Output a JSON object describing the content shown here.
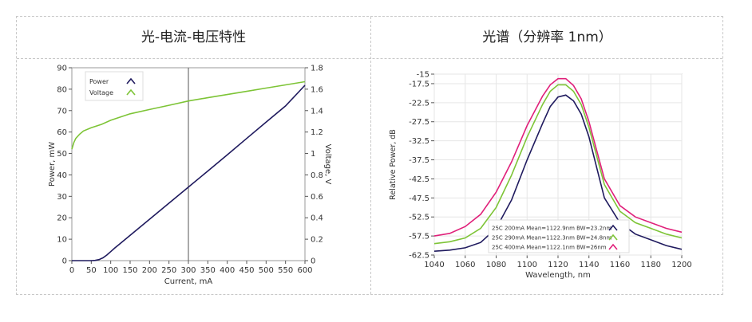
{
  "chart_data": [
    {
      "type": "line",
      "title": "光-电流-电压特性",
      "xlabel": "Current, mA",
      "ylabel": "Power, mW",
      "y2label": "Voltage, V",
      "xlim": [
        0,
        600
      ],
      "ylim": [
        0,
        90
      ],
      "y2lim": [
        0,
        1.8
      ],
      "xticks": [
        "0",
        "50",
        "100",
        "150",
        "200",
        "250",
        "300",
        "350",
        "400",
        "450",
        "500",
        "550",
        "600"
      ],
      "yticks": [
        "0",
        "10",
        "20",
        "30",
        "40",
        "50",
        "60",
        "70",
        "80",
        "90"
      ],
      "y2ticks": [
        "0",
        "0.2",
        "0.4",
        "0.6",
        "0.8",
        "1",
        "1.2",
        "1.4",
        "1.6",
        "1.8"
      ],
      "marker_x": 300,
      "legend": "top-left",
      "grid": false,
      "series": [
        {
          "name": "Power",
          "axis": "left",
          "color": "#1f1a5e",
          "x": [
            0,
            50,
            60,
            70,
            80,
            90,
            100,
            110,
            120,
            150,
            200,
            250,
            300,
            350,
            400,
            450,
            500,
            550,
            600
          ],
          "y": [
            0,
            0,
            0.1,
            0.5,
            1.3,
            2.6,
            4.2,
            5.8,
            7.3,
            11.8,
            19.3,
            26.8,
            34.3,
            41.8,
            49.4,
            57.0,
            64.6,
            72.2,
            81.8
          ]
        },
        {
          "name": "Voltage",
          "axis": "right",
          "color": "#7dc436",
          "x": [
            0,
            5,
            10,
            20,
            30,
            50,
            75,
            100,
            150,
            200,
            250,
            300,
            350,
            400,
            450,
            500,
            550,
            600
          ],
          "y": [
            1.04,
            1.1,
            1.14,
            1.18,
            1.21,
            1.24,
            1.27,
            1.31,
            1.37,
            1.41,
            1.45,
            1.49,
            1.52,
            1.55,
            1.58,
            1.61,
            1.64,
            1.67
          ]
        }
      ]
    },
    {
      "type": "line",
      "title": "光谱（分辨率 1nm）",
      "xlabel": "Wavelength, nm",
      "ylabel": "Relative Power, dB",
      "xlim": [
        1040,
        1200
      ],
      "ylim": [
        -62.5,
        -15
      ],
      "xticks": [
        "1040",
        "1060",
        "1080",
        "1100",
        "1120",
        "1140",
        "1160",
        "1180",
        "1200"
      ],
      "yticks": [
        "-15",
        "-17.5",
        "-22.5",
        "-27.5",
        "-32.5",
        "-37.5",
        "-42.5",
        "-47.5",
        "-52.5",
        "-57.5",
        "-62.5"
      ],
      "grid": true,
      "legend": "bottom-center",
      "series": [
        {
          "name": "25C 200mA Mean=1122.9nm BW=23.2nm",
          "color": "#1f1a5e",
          "x": [
            1040,
            1050,
            1060,
            1070,
            1080,
            1090,
            1100,
            1110,
            1115,
            1120,
            1125,
            1130,
            1135,
            1140,
            1145,
            1150,
            1160,
            1170,
            1180,
            1190,
            1200
          ],
          "y": [
            -61.5,
            -61.2,
            -60.6,
            -59.2,
            -55.5,
            -48.0,
            -37.5,
            -28.0,
            -23.5,
            -21.0,
            -20.5,
            -22.0,
            -25.5,
            -31.5,
            -39.5,
            -47.5,
            -54.0,
            -57.0,
            -58.5,
            -60.0,
            -61.0
          ]
        },
        {
          "name": "25C 290mA Mean=1122.3nm BW=24.8nm",
          "color": "#7dc436",
          "x": [
            1040,
            1050,
            1060,
            1070,
            1080,
            1090,
            1100,
            1110,
            1115,
            1120,
            1125,
            1130,
            1135,
            1140,
            1145,
            1150,
            1160,
            1170,
            1180,
            1190,
            1200
          ],
          "y": [
            -59.5,
            -59.0,
            -58.0,
            -55.5,
            -50.0,
            -41.5,
            -31.5,
            -23.0,
            -19.5,
            -17.8,
            -17.8,
            -19.5,
            -23.0,
            -29.0,
            -36.5,
            -44.0,
            -51.0,
            -54.0,
            -55.5,
            -57.0,
            -58.0
          ]
        },
        {
          "name": "25C 400mA Mean=1122.1nm BW=26nm",
          "color": "#e0207a",
          "x": [
            1040,
            1050,
            1060,
            1070,
            1080,
            1090,
            1100,
            1110,
            1115,
            1120,
            1125,
            1130,
            1135,
            1140,
            1145,
            1150,
            1160,
            1170,
            1180,
            1190,
            1200
          ],
          "y": [
            -57.5,
            -56.8,
            -55.0,
            -51.8,
            -46.0,
            -38.0,
            -28.5,
            -20.8,
            -17.8,
            -16.2,
            -16.2,
            -18.0,
            -21.5,
            -27.5,
            -35.0,
            -42.5,
            -49.5,
            -52.5,
            -54.0,
            -55.5,
            -56.5
          ]
        }
      ]
    }
  ]
}
